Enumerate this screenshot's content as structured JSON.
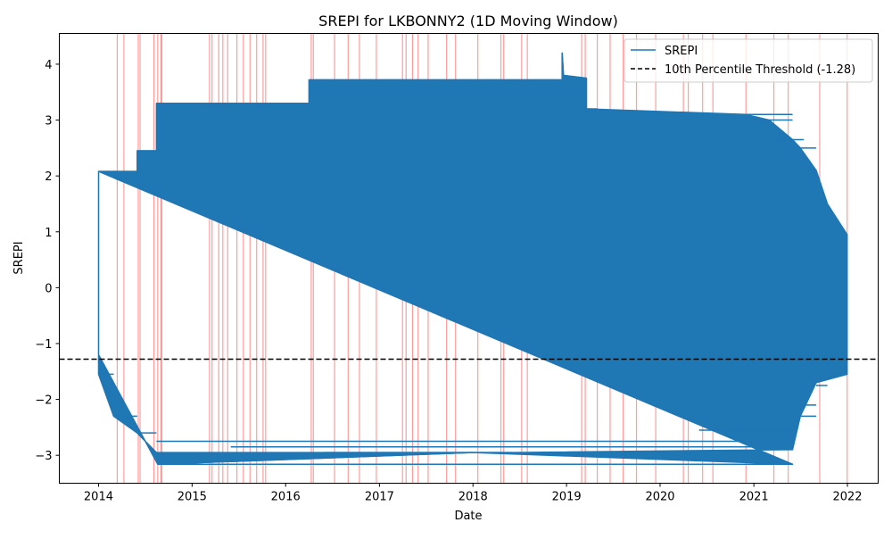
{
  "chart_data": {
    "type": "line",
    "title": "SREPI for LKBONNY2 (1D Moving Window)",
    "xlabel": "Date",
    "ylabel": "SREPI",
    "xlim": [
      "2013-08-01",
      "2022-05-01"
    ],
    "ylim": [
      -3.5,
      4.55
    ],
    "x_ticks": [
      "2014",
      "2015",
      "2016",
      "2017",
      "2018",
      "2019",
      "2020",
      "2021",
      "2022"
    ],
    "y_ticks": [
      -3,
      -2,
      -1,
      0,
      1,
      2,
      3,
      4
    ],
    "y_tick_labels": [
      "−3",
      "−2",
      "−1",
      "0",
      "1",
      "2",
      "3",
      "4"
    ],
    "grid": false,
    "legend_position": "top-right",
    "series": [
      {
        "name": "SREPI",
        "color": "#1f77b4",
        "style": "solid",
        "points": [
          [
            "2014-01-01",
            2.08
          ],
          [
            "2014-06-01",
            2.08
          ],
          [
            "2014-06-01",
            2.45
          ],
          [
            "2014-08-15",
            2.45
          ],
          [
            "2014-08-15",
            3.3
          ],
          [
            "2016-04-01",
            3.3
          ],
          [
            "2016-04-01",
            3.72
          ],
          [
            "2018-12-15",
            3.72
          ],
          [
            "2018-12-15",
            4.2
          ],
          [
            "2018-12-20",
            3.8
          ],
          [
            "2019-03-20",
            3.75
          ],
          [
            "2019-03-20",
            3.2
          ],
          [
            "2020-12-01",
            3.1
          ],
          [
            "2021-03-01",
            3.0
          ],
          [
            "2021-06-01",
            2.65
          ],
          [
            "2021-07-01",
            2.5
          ],
          [
            "2021-09-01",
            2.1
          ],
          [
            "2021-10-15",
            1.5
          ],
          [
            "2021-12-31",
            0.95
          ],
          [
            "2021-12-31",
            -1.55
          ],
          [
            "2021-09-01",
            -1.7
          ],
          [
            "2021-07-01",
            -2.3
          ],
          [
            "2021-06-01",
            -2.9
          ],
          [
            "2018-06-01",
            -2.95
          ],
          [
            "2014-08-15",
            -2.95
          ],
          [
            "2014-06-01",
            -2.6
          ],
          [
            "2014-03-01",
            -2.3
          ],
          [
            "2014-01-01",
            -1.55
          ],
          [
            "2014-01-01",
            2.08
          ],
          [
            "2014-01-01",
            -1.2
          ],
          [
            "2014-08-20",
            -3.16
          ],
          [
            "2018-01-01",
            -2.95
          ],
          [
            "2021-06-01",
            -3.16
          ]
        ]
      },
      {
        "name": "10th Percentile Threshold (-1.28)",
        "color": "#000000",
        "style": "dashed",
        "value": -1.28
      }
    ],
    "band_edges": [
      [
        2014,
        2013.8,
        2014.0
      ],
      [
        2014,
        2014.0,
        2014.2
      ],
      [
        2014,
        2014.2,
        2014.4
      ],
      [
        2014,
        2014.4,
        2014.6
      ],
      [
        2014,
        2014.6,
        2014.8
      ],
      [
        2014,
        2014.8,
        2015.0
      ]
    ],
    "drought_periods": [
      "2014-03-15",
      "2014-04-10",
      "2014-06-05",
      "2014-06-12",
      "2014-08-05",
      "2014-08-20",
      "2014-09-01",
      "2014-09-05",
      "2015-03-10",
      "2015-03-20",
      "2015-04-15",
      "2015-05-01",
      "2015-05-20",
      "2015-06-25",
      "2015-07-20",
      "2015-08-15",
      "2015-09-10",
      "2015-10-05",
      "2015-10-15",
      "2016-04-10",
      "2016-04-18",
      "2016-07-10",
      "2016-09-01",
      "2016-10-15",
      "2016-12-20",
      "2017-04-01",
      "2017-04-15",
      "2017-05-10",
      "2017-06-01",
      "2017-07-10",
      "2017-09-20",
      "2017-10-25",
      "2018-01-20",
      "2018-04-20",
      "2018-05-01",
      "2018-07-10",
      "2018-08-01",
      "2019-03-01",
      "2019-03-15",
      "2019-05-01",
      "2019-06-20",
      "2019-08-10",
      "2019-10-01",
      "2019-12-15",
      "2020-04-01",
      "2020-04-20",
      "2020-06-15",
      "2020-07-25",
      "2020-12-01",
      "2021-03-20",
      "2021-05-15",
      "2021-09-15",
      "2021-12-31"
    ],
    "drought_color": "#ff4c4c"
  }
}
